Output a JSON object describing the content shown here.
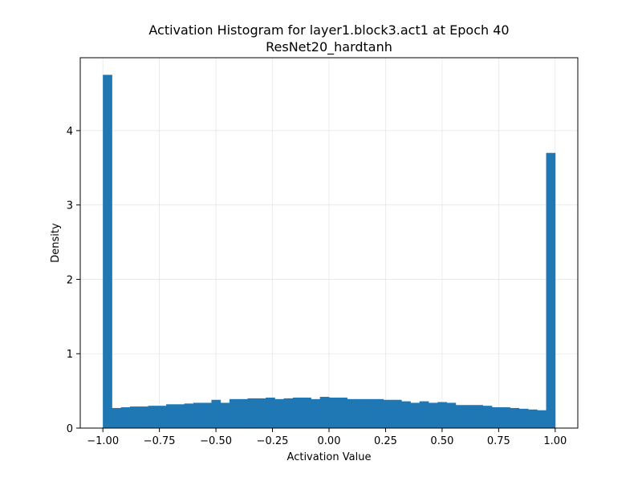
{
  "chart_data": {
    "type": "bar",
    "title": "Activation Histogram for layer1.block3.act1 at Epoch 40",
    "subtitle": "ResNet20_hardtanh",
    "xlabel": "Activation Value",
    "ylabel": "Density",
    "xlim": [
      -1.1,
      1.1
    ],
    "ylim": [
      0,
      4.98
    ],
    "xticks": [
      "-1.00",
      "-0.75",
      "-0.50",
      "-0.25",
      "0.00",
      "0.25",
      "0.50",
      "0.75",
      "1.00"
    ],
    "yticks": [
      "0",
      "1",
      "2",
      "3",
      "4"
    ],
    "grid": true,
    "bar_color": "#1f77b4",
    "bin_start": -1.0,
    "bin_width": 0.04,
    "densities": [
      4.75,
      0.27,
      0.28,
      0.29,
      0.29,
      0.3,
      0.3,
      0.32,
      0.32,
      0.33,
      0.34,
      0.34,
      0.38,
      0.34,
      0.39,
      0.39,
      0.4,
      0.4,
      0.41,
      0.39,
      0.4,
      0.41,
      0.41,
      0.39,
      0.42,
      0.41,
      0.41,
      0.39,
      0.39,
      0.39,
      0.39,
      0.38,
      0.38,
      0.36,
      0.34,
      0.36,
      0.34,
      0.35,
      0.34,
      0.31,
      0.31,
      0.31,
      0.3,
      0.28,
      0.28,
      0.27,
      0.26,
      0.25,
      0.24,
      3.7
    ]
  }
}
